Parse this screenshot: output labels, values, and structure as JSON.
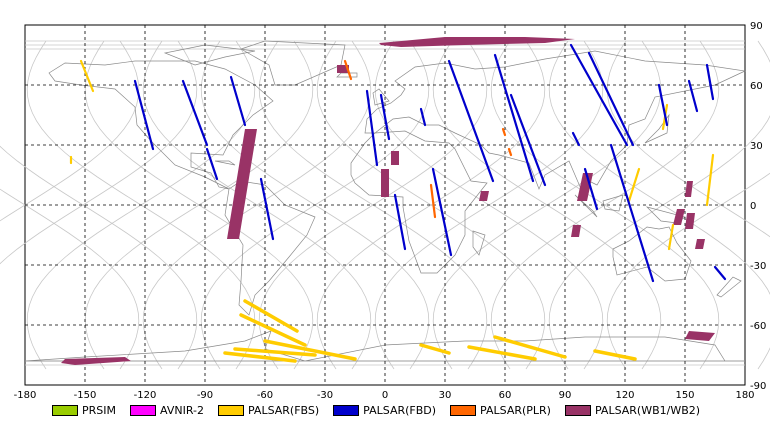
{
  "chart_data": {
    "type": "map",
    "projection": "equirectangular",
    "xlim": [
      -180,
      180
    ],
    "ylim": [
      -90,
      90
    ],
    "grid": true,
    "x_ticks": [
      "-180",
      "-150",
      "-120",
      "-90",
      "-60",
      "-30",
      "0",
      "30",
      "60",
      "90",
      "120",
      "150",
      "180"
    ],
    "y_ticks_right": [
      "90",
      "60",
      "30",
      "0",
      "-30",
      "-60",
      "-90"
    ],
    "legend_placement": "bottom",
    "legend": [
      {
        "label": "PRSIM",
        "color": "#99cc00"
      },
      {
        "label": "AVNIR-2",
        "color": "#ff00ff"
      },
      {
        "label": "PALSAR(FBS)",
        "color": "#ffcc00"
      },
      {
        "label": "PALSAR(FBD)",
        "color": "#0000cc"
      },
      {
        "label": "PALSAR(PLR)",
        "color": "#ff6600"
      },
      {
        "label": "PALSAR(WB1/WB2)",
        "color": "#993366"
      }
    ],
    "segments": [
      {
        "series": "PALSAR(FBS)",
        "lon1": -152,
        "lat1": 72,
        "lon2": -146,
        "lat2": 57
      },
      {
        "series": "PALSAR(FBS)",
        "lon1": -157,
        "lat1": 24,
        "lon2": -157,
        "lat2": 21
      },
      {
        "series": "PALSAR(FBS)",
        "lon1": 141,
        "lat1": 50,
        "lon2": 139,
        "lat2": 38
      },
      {
        "series": "PALSAR(FBS)",
        "lon1": 127,
        "lat1": 18,
        "lon2": 122,
        "lat2": 2
      },
      {
        "series": "PALSAR(FBS)",
        "lon1": 164,
        "lat1": 25,
        "lon2": 161,
        "lat2": 0
      },
      {
        "series": "PALSAR(FBS)",
        "lon1": 144,
        "lat1": -10,
        "lon2": 142,
        "lat2": -22
      },
      {
        "series": "PALSAR(FBS)",
        "lon1": -70,
        "lat1": -48,
        "lon2": -44,
        "lat2": -63
      },
      {
        "series": "PALSAR(FBS)",
        "lon1": -72,
        "lat1": -55,
        "lon2": -40,
        "lat2": -70
      },
      {
        "series": "PALSAR(FBS)",
        "lon1": -75,
        "lat1": -72,
        "lon2": -35,
        "lat2": -75
      },
      {
        "series": "PALSAR(FBS)",
        "lon1": -60,
        "lat1": -68,
        "lon2": -15,
        "lat2": -77
      },
      {
        "series": "PALSAR(FBS)",
        "lon1": -80,
        "lat1": -74,
        "lon2": -45,
        "lat2": -78
      },
      {
        "series": "PALSAR(FBS)",
        "lon1": 18,
        "lat1": -70,
        "lon2": 32,
        "lat2": -74
      },
      {
        "series": "PALSAR(FBS)",
        "lon1": 42,
        "lat1": -71,
        "lon2": 75,
        "lat2": -77
      },
      {
        "series": "PALSAR(FBS)",
        "lon1": 55,
        "lat1": -66,
        "lon2": 90,
        "lat2": -76
      },
      {
        "series": "PALSAR(FBS)",
        "lon1": 105,
        "lat1": -73,
        "lon2": 125,
        "lat2": -77
      },
      {
        "series": "PALSAR(FBD)",
        "lon1": -125,
        "lat1": 62,
        "lon2": -116,
        "lat2": 28
      },
      {
        "series": "PALSAR(FBD)",
        "lon1": -101,
        "lat1": 62,
        "lon2": -89,
        "lat2": 30
      },
      {
        "series": "PALSAR(FBD)",
        "lon1": -77,
        "lat1": 64,
        "lon2": -70,
        "lat2": 40
      },
      {
        "series": "PALSAR(FBD)",
        "lon1": -89,
        "lat1": 28,
        "lon2": -84,
        "lat2": 13
      },
      {
        "series": "PALSAR(FBD)",
        "lon1": -62,
        "lat1": 13,
        "lon2": -56,
        "lat2": -17
      },
      {
        "series": "PALSAR(FBD)",
        "lon1": -9,
        "lat1": 57,
        "lon2": -4,
        "lat2": 20
      },
      {
        "series": "PALSAR(FBD)",
        "lon1": -2,
        "lat1": 55,
        "lon2": 2,
        "lat2": 33
      },
      {
        "series": "PALSAR(FBD)",
        "lon1": 5,
        "lat1": 5,
        "lon2": 10,
        "lat2": -22
      },
      {
        "series": "PALSAR(FBD)",
        "lon1": 18,
        "lat1": 48,
        "lon2": 20,
        "lat2": 40
      },
      {
        "series": "PALSAR(FBD)",
        "lon1": 24,
        "lat1": 18,
        "lon2": 33,
        "lat2": -25
      },
      {
        "series": "PALSAR(FBD)",
        "lon1": 32,
        "lat1": 72,
        "lon2": 54,
        "lat2": 12
      },
      {
        "series": "PALSAR(FBD)",
        "lon1": 55,
        "lat1": 75,
        "lon2": 74,
        "lat2": 12
      },
      {
        "series": "PALSAR(FBD)",
        "lon1": 63,
        "lat1": 55,
        "lon2": 80,
        "lat2": 10
      },
      {
        "series": "PALSAR(FBD)",
        "lon1": 93,
        "lat1": 80,
        "lon2": 121,
        "lat2": 30
      },
      {
        "series": "PALSAR(FBD)",
        "lon1": 102,
        "lat1": 76,
        "lon2": 124,
        "lat2": 30
      },
      {
        "series": "PALSAR(FBD)",
        "lon1": 94,
        "lat1": 36,
        "lon2": 97,
        "lat2": 30
      },
      {
        "series": "PALSAR(FBD)",
        "lon1": 100,
        "lat1": 18,
        "lon2": 106,
        "lat2": -2
      },
      {
        "series": "PALSAR(FBD)",
        "lon1": 113,
        "lat1": 30,
        "lon2": 134,
        "lat2": -38
      },
      {
        "series": "PALSAR(FBD)",
        "lon1": 137,
        "lat1": 60,
        "lon2": 141,
        "lat2": 40
      },
      {
        "series": "PALSAR(FBD)",
        "lon1": 152,
        "lat1": 62,
        "lon2": 156,
        "lat2": 47
      },
      {
        "series": "PALSAR(FBD)",
        "lon1": 161,
        "lat1": 70,
        "lon2": 164,
        "lat2": 53
      },
      {
        "series": "PALSAR(FBD)",
        "lon1": 165,
        "lat1": -31,
        "lon2": 170,
        "lat2": -37
      },
      {
        "series": "PALSAR(PLR)",
        "lon1": -20,
        "lat1": 72,
        "lon2": -17,
        "lat2": 63
      },
      {
        "series": "PALSAR(PLR)",
        "lon1": 23,
        "lat1": 10,
        "lon2": 25,
        "lat2": -6
      },
      {
        "series": "PALSAR(PLR)",
        "lon1": 59,
        "lat1": 38,
        "lon2": 60,
        "lat2": 35
      },
      {
        "series": "PALSAR(PLR)",
        "lon1": 62,
        "lat1": 28,
        "lon2": 63,
        "lat2": 25
      }
    ],
    "swaths": [
      {
        "series": "PALSAR(WB1/WB2)",
        "polygon": [
          [
            -70,
            38
          ],
          [
            -64,
            38
          ],
          [
            -73,
            -17
          ],
          [
            -79,
            -17
          ]
        ]
      },
      {
        "series": "PALSAR(WB1/WB2)",
        "polygon": [
          [
            -2,
            18
          ],
          [
            2,
            18
          ],
          [
            2,
            4
          ],
          [
            -2,
            4
          ]
        ]
      },
      {
        "series": "PALSAR(WB1/WB2)",
        "polygon": [
          [
            3,
            27
          ],
          [
            7,
            27
          ],
          [
            7,
            20
          ],
          [
            3,
            20
          ]
        ]
      },
      {
        "series": "PALSAR(WB1/WB2)",
        "polygon": [
          [
            48,
            7
          ],
          [
            52,
            7
          ],
          [
            51,
            2
          ],
          [
            47,
            2
          ]
        ]
      },
      {
        "series": "PALSAR(WB1/WB2)",
        "polygon": [
          [
            99,
            16
          ],
          [
            104,
            16
          ],
          [
            101,
            2
          ],
          [
            96,
            2
          ]
        ]
      },
      {
        "series": "PALSAR(WB1/WB2)",
        "polygon": [
          [
            94,
            -10
          ],
          [
            98,
            -10
          ],
          [
            97,
            -16
          ],
          [
            93,
            -16
          ]
        ]
      },
      {
        "series": "PALSAR(WB1/WB2)",
        "polygon": [
          [
            146,
            -2
          ],
          [
            150,
            -2
          ],
          [
            148,
            -10
          ],
          [
            144,
            -10
          ]
        ]
      },
      {
        "series": "PALSAR(WB1/WB2)",
        "polygon": [
          [
            151,
            12
          ],
          [
            154,
            12
          ],
          [
            153,
            4
          ],
          [
            150,
            4
          ]
        ]
      },
      {
        "series": "PALSAR(WB1/WB2)",
        "polygon": [
          [
            151,
            -4
          ],
          [
            155,
            -4
          ],
          [
            154,
            -12
          ],
          [
            150,
            -12
          ]
        ]
      },
      {
        "series": "PALSAR(WB1/WB2)",
        "polygon": [
          [
            156,
            -17
          ],
          [
            160,
            -17
          ],
          [
            159,
            -22
          ],
          [
            155,
            -22
          ]
        ]
      },
      {
        "series": "PALSAR(WB1/WB2)",
        "polygon": [
          [
            -3,
            81
          ],
          [
            30,
            84
          ],
          [
            70,
            84
          ],
          [
            95,
            83
          ],
          [
            80,
            81
          ],
          [
            40,
            80
          ],
          [
            8,
            79
          ],
          [
            -2,
            80
          ]
        ]
      },
      {
        "series": "PALSAR(WB1/WB2)",
        "polygon": [
          [
            -160,
            -77
          ],
          [
            -130,
            -76
          ],
          [
            -127,
            -78
          ],
          [
            -155,
            -80
          ],
          [
            -162,
            -79
          ]
        ]
      },
      {
        "series": "PALSAR(WB1/WB2)",
        "polygon": [
          [
            152,
            -63
          ],
          [
            165,
            -64
          ],
          [
            162,
            -68
          ],
          [
            150,
            -67
          ]
        ]
      },
      {
        "series": "PALSAR(WB1/WB2)",
        "polygon": [
          [
            -24,
            70
          ],
          [
            -18,
            70
          ],
          [
            -18,
            66
          ],
          [
            -24,
            66
          ]
        ]
      }
    ]
  }
}
